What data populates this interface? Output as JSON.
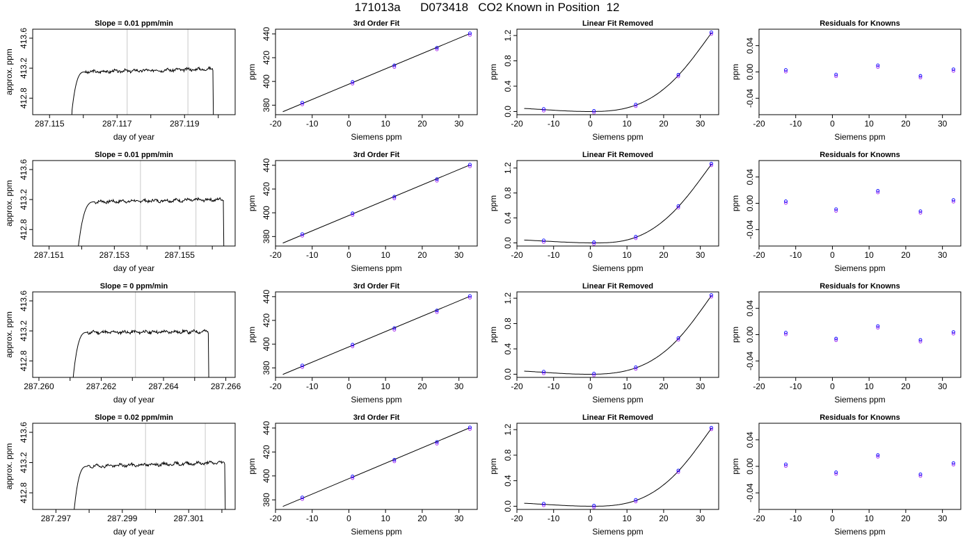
{
  "page": {
    "title": "171013a      D073418   CO2 Known in Position  12"
  },
  "chart_data": [
    {
      "type": "line",
      "title": "Slope =  0.01  ppm/min",
      "xlabel": "day of year",
      "ylabel": "approx. ppm",
      "xlim": [
        287.1145,
        287.1205
      ],
      "ylim": [
        412.58,
        413.72
      ],
      "xticks": [
        287.115,
        287.116,
        287.117,
        287.118,
        287.119,
        287.12
      ],
      "xtick_labels": [
        "287.115",
        "",
        "287.117",
        "",
        "287.119",
        ""
      ],
      "yticks": [
        412.8,
        413.2,
        413.6
      ],
      "ytick_labels": [
        "412.8",
        "413.2",
        "413.6"
      ],
      "vlines": [
        287.1173,
        287.1191
      ],
      "shape": {
        "start": 287.11565,
        "knee": 287.11605,
        "end": 287.11985,
        "level": 413.15,
        "drift": 0.04,
        "bottom": 412.58,
        "seed": 3
      }
    },
    {
      "type": "scatter",
      "title": "3rd Order Fit",
      "xlabel": "Siemens ppm",
      "ylabel": "ppm",
      "xlim": [
        -20,
        35
      ],
      "ylim": [
        372,
        444
      ],
      "xticks": [
        -20,
        -10,
        0,
        10,
        20,
        30
      ],
      "yticks": [
        380,
        400,
        420,
        440
      ],
      "x": [
        -12.7,
        1.0,
        12.4,
        24.0,
        33.0
      ],
      "y": [
        381.5,
        399.0,
        413.0,
        427.8,
        440.0
      ],
      "fit_line": [
        [
          -18,
          374.5
        ],
        [
          33,
          440.3
        ]
      ]
    },
    {
      "type": "scatter",
      "title": "Linear Fit Removed",
      "xlabel": "Siemens ppm",
      "ylabel": "ppm",
      "xlim": [
        -20,
        35
      ],
      "ylim": [
        -0.05,
        1.3
      ],
      "xticks": [
        -20,
        -10,
        0,
        10,
        20,
        30
      ],
      "yticks": [
        0.0,
        0.4,
        0.8,
        1.2
      ],
      "ytick_labels": [
        "0.0",
        "0.4",
        "0.8",
        "1.2"
      ],
      "x": [
        -12.7,
        1.0,
        12.4,
        24.0,
        33.0
      ],
      "y": [
        0.03,
        0.0,
        0.1,
        0.57,
        1.24
      ],
      "curve": {
        "xmin": -18,
        "xmax": 33
      }
    },
    {
      "type": "scatter",
      "title": "Residuals for Knowns",
      "xlabel": "Siemens ppm",
      "ylabel": "ppm",
      "xlim": [
        -20,
        35
      ],
      "ylim": [
        -0.065,
        0.065
      ],
      "xticks": [
        -20,
        -10,
        0,
        10,
        20,
        30
      ],
      "yticks": [
        -0.04,
        0.0,
        0.04
      ],
      "ytick_labels": [
        "-0.04",
        "0.00",
        "0.04"
      ],
      "x": [
        -12.7,
        1.0,
        12.4,
        24.0,
        33.0
      ],
      "y": [
        0.002,
        -0.005,
        0.009,
        -0.007,
        0.003
      ]
    },
    {
      "type": "line",
      "title": "Slope =  0.01  ppm/min",
      "xlabel": "day of year",
      "ylabel": "approx. ppm",
      "xlim": [
        287.1505,
        287.1567
      ],
      "ylim": [
        412.58,
        413.72
      ],
      "xticks": [
        287.151,
        287.152,
        287.153,
        287.154,
        287.155,
        287.156
      ],
      "xtick_labels": [
        "287.151",
        "",
        "287.153",
        "",
        "287.155",
        ""
      ],
      "yticks": [
        412.8,
        413.2,
        413.6
      ],
      "ytick_labels": [
        "412.8",
        "413.2",
        "413.6"
      ],
      "vlines": [
        287.1538,
        287.1555
      ],
      "shape": {
        "start": 287.1519,
        "knee": 287.1524,
        "end": 287.15635,
        "level": 413.17,
        "drift": 0.03,
        "bottom": 412.58,
        "seed": 7
      }
    },
    {
      "type": "scatter",
      "title": "3rd Order Fit",
      "xlabel": "Siemens ppm",
      "ylabel": "ppm",
      "xlim": [
        -20,
        35
      ],
      "ylim": [
        372,
        444
      ],
      "xticks": [
        -20,
        -10,
        0,
        10,
        20,
        30
      ],
      "yticks": [
        380,
        400,
        420,
        440
      ],
      "x": [
        -12.7,
        1.0,
        12.4,
        24.0,
        33.0
      ],
      "y": [
        381.5,
        399.0,
        413.0,
        427.8,
        440.0
      ],
      "fit_line": [
        [
          -18,
          374.5
        ],
        [
          33,
          440.3
        ]
      ]
    },
    {
      "type": "scatter",
      "title": "Linear Fit Removed",
      "xlabel": "Siemens ppm",
      "ylabel": "ppm",
      "xlim": [
        -20,
        35
      ],
      "ylim": [
        -0.05,
        1.32
      ],
      "xticks": [
        -20,
        -10,
        0,
        10,
        20,
        30
      ],
      "yticks": [
        0.0,
        0.4,
        0.8,
        1.2
      ],
      "ytick_labels": [
        "0.0",
        "0.4",
        "0.8",
        "1.2"
      ],
      "x": [
        -12.7,
        1.0,
        12.4,
        24.0,
        33.0
      ],
      "y": [
        0.03,
        0.0,
        0.09,
        0.58,
        1.26
      ],
      "curve": {
        "xmin": -18,
        "xmax": 33
      }
    },
    {
      "type": "scatter",
      "title": "Residuals for Knowns",
      "xlabel": "Siemens ppm",
      "ylabel": "ppm",
      "xlim": [
        -20,
        35
      ],
      "ylim": [
        -0.065,
        0.065
      ],
      "xticks": [
        -20,
        -10,
        0,
        10,
        20,
        30
      ],
      "yticks": [
        -0.04,
        0.0,
        0.04
      ],
      "ytick_labels": [
        "-0.04",
        "0.00",
        "0.04"
      ],
      "x": [
        -12.7,
        1.0,
        12.4,
        24.0,
        33.0
      ],
      "y": [
        0.002,
        -0.01,
        0.018,
        -0.013,
        0.004
      ]
    },
    {
      "type": "line",
      "title": "Slope =  0  ppm/min",
      "xlabel": "day of year",
      "ylabel": "approx. ppm",
      "xlim": [
        287.2598,
        287.2663
      ],
      "ylim": [
        412.58,
        413.72
      ],
      "xticks": [
        287.26,
        287.261,
        287.262,
        287.263,
        287.264,
        287.265,
        287.266
      ],
      "xtick_labels": [
        "287.260",
        "",
        "287.262",
        "",
        "287.264",
        "",
        "287.266"
      ],
      "yticks": [
        412.8,
        413.2,
        413.6
      ],
      "ytick_labels": [
        "412.8",
        "413.2",
        "413.6"
      ],
      "vlines": [
        287.2631,
        287.265
      ],
      "shape": {
        "start": 287.2611,
        "knee": 287.26155,
        "end": 287.26545,
        "level": 413.18,
        "drift": 0.01,
        "bottom": 412.58,
        "seed": 11
      }
    },
    {
      "type": "scatter",
      "title": "3rd Order Fit",
      "xlabel": "Siemens ppm",
      "ylabel": "ppm",
      "xlim": [
        -20,
        35
      ],
      "ylim": [
        372,
        444
      ],
      "xticks": [
        -20,
        -10,
        0,
        10,
        20,
        30
      ],
      "yticks": [
        380,
        400,
        420,
        440
      ],
      "x": [
        -12.7,
        1.0,
        12.4,
        24.0,
        33.0
      ],
      "y": [
        381.5,
        399.0,
        413.0,
        427.8,
        440.0
      ],
      "fit_line": [
        [
          -18,
          374.5
        ],
        [
          33,
          440.3
        ]
      ]
    },
    {
      "type": "scatter",
      "title": "Linear Fit Removed",
      "xlabel": "Siemens ppm",
      "ylabel": "ppm",
      "xlim": [
        -20,
        35
      ],
      "ylim": [
        -0.05,
        1.3
      ],
      "xticks": [
        -20,
        -10,
        0,
        10,
        20,
        30
      ],
      "yticks": [
        0.0,
        0.4,
        0.8,
        1.2
      ],
      "ytick_labels": [
        "0.0",
        "0.4",
        "0.8",
        "1.2"
      ],
      "x": [
        -12.7,
        1.0,
        12.4,
        24.0,
        33.0
      ],
      "y": [
        0.03,
        0.0,
        0.1,
        0.56,
        1.24
      ],
      "curve": {
        "xmin": -18,
        "xmax": 33
      }
    },
    {
      "type": "scatter",
      "title": "Residuals for Knowns",
      "xlabel": "Siemens ppm",
      "ylabel": "ppm",
      "xlim": [
        -20,
        35
      ],
      "ylim": [
        -0.065,
        0.065
      ],
      "xticks": [
        -20,
        -10,
        0,
        10,
        20,
        30
      ],
      "yticks": [
        -0.04,
        0.0,
        0.04
      ],
      "ytick_labels": [
        "-0.04",
        "0.00",
        "0.04"
      ],
      "x": [
        -12.7,
        1.0,
        12.4,
        24.0,
        33.0
      ],
      "y": [
        0.002,
        -0.007,
        0.012,
        -0.009,
        0.003
      ]
    },
    {
      "type": "line",
      "title": "Slope =  0.02  ppm/min",
      "xlabel": "day of year",
      "ylabel": "approx. ppm",
      "xlim": [
        287.2963,
        287.3024
      ],
      "ylim": [
        412.58,
        413.72
      ],
      "xticks": [
        287.297,
        287.298,
        287.299,
        287.3,
        287.301,
        287.302
      ],
      "xtick_labels": [
        "287.297",
        "",
        "287.299",
        "",
        "287.301",
        ""
      ],
      "yticks": [
        412.8,
        413.2,
        413.6
      ],
      "ytick_labels": [
        "412.8",
        "413.2",
        "413.6"
      ],
      "vlines": [
        287.2997,
        287.3015
      ],
      "shape": {
        "start": 287.29755,
        "knee": 287.29795,
        "end": 287.3021,
        "level": 413.15,
        "drift": 0.05,
        "bottom": 412.58,
        "seed": 19
      }
    },
    {
      "type": "scatter",
      "title": "3rd Order Fit",
      "xlabel": "Siemens ppm",
      "ylabel": "ppm",
      "xlim": [
        -20,
        35
      ],
      "ylim": [
        372,
        444
      ],
      "xticks": [
        -20,
        -10,
        0,
        10,
        20,
        30
      ],
      "yticks": [
        380,
        400,
        420,
        440
      ],
      "x": [
        -12.7,
        1.0,
        12.4,
        24.0,
        33.0
      ],
      "y": [
        381.5,
        399.0,
        413.0,
        427.8,
        440.0
      ],
      "fit_line": [
        [
          -18,
          374.5
        ],
        [
          33,
          440.3
        ]
      ]
    },
    {
      "type": "scatter",
      "title": "Linear Fit Removed",
      "xlabel": "Siemens ppm",
      "ylabel": "ppm",
      "xlim": [
        -20,
        35
      ],
      "ylim": [
        -0.05,
        1.3
      ],
      "xticks": [
        -20,
        -10,
        0,
        10,
        20,
        30
      ],
      "yticks": [
        0.0,
        0.4,
        0.8,
        1.2
      ],
      "ytick_labels": [
        "0.0",
        "0.4",
        "0.8",
        "1.2"
      ],
      "x": [
        -12.7,
        1.0,
        12.4,
        24.0,
        33.0
      ],
      "y": [
        0.03,
        0.0,
        0.09,
        0.55,
        1.22
      ],
      "curve": {
        "xmin": -18,
        "xmax": 33
      }
    },
    {
      "type": "scatter",
      "title": "Residuals for Knowns",
      "xlabel": "Siemens ppm",
      "ylabel": "ppm",
      "xlim": [
        -20,
        35
      ],
      "ylim": [
        -0.065,
        0.065
      ],
      "xticks": [
        -20,
        -10,
        0,
        10,
        20,
        30
      ],
      "yticks": [
        -0.04,
        0.0,
        0.04
      ],
      "ytick_labels": [
        "-0.04",
        "0.00",
        "0.04"
      ],
      "x": [
        -12.7,
        1.0,
        12.4,
        24.0,
        33.0
      ],
      "y": [
        0.002,
        -0.01,
        0.016,
        -0.013,
        0.004
      ]
    }
  ],
  "colors": {
    "trace": "#000000",
    "vline": "#c8c8c8",
    "marker_blue": "#0000ff",
    "marker_purple": "#a020f0",
    "axis": "#000000"
  }
}
